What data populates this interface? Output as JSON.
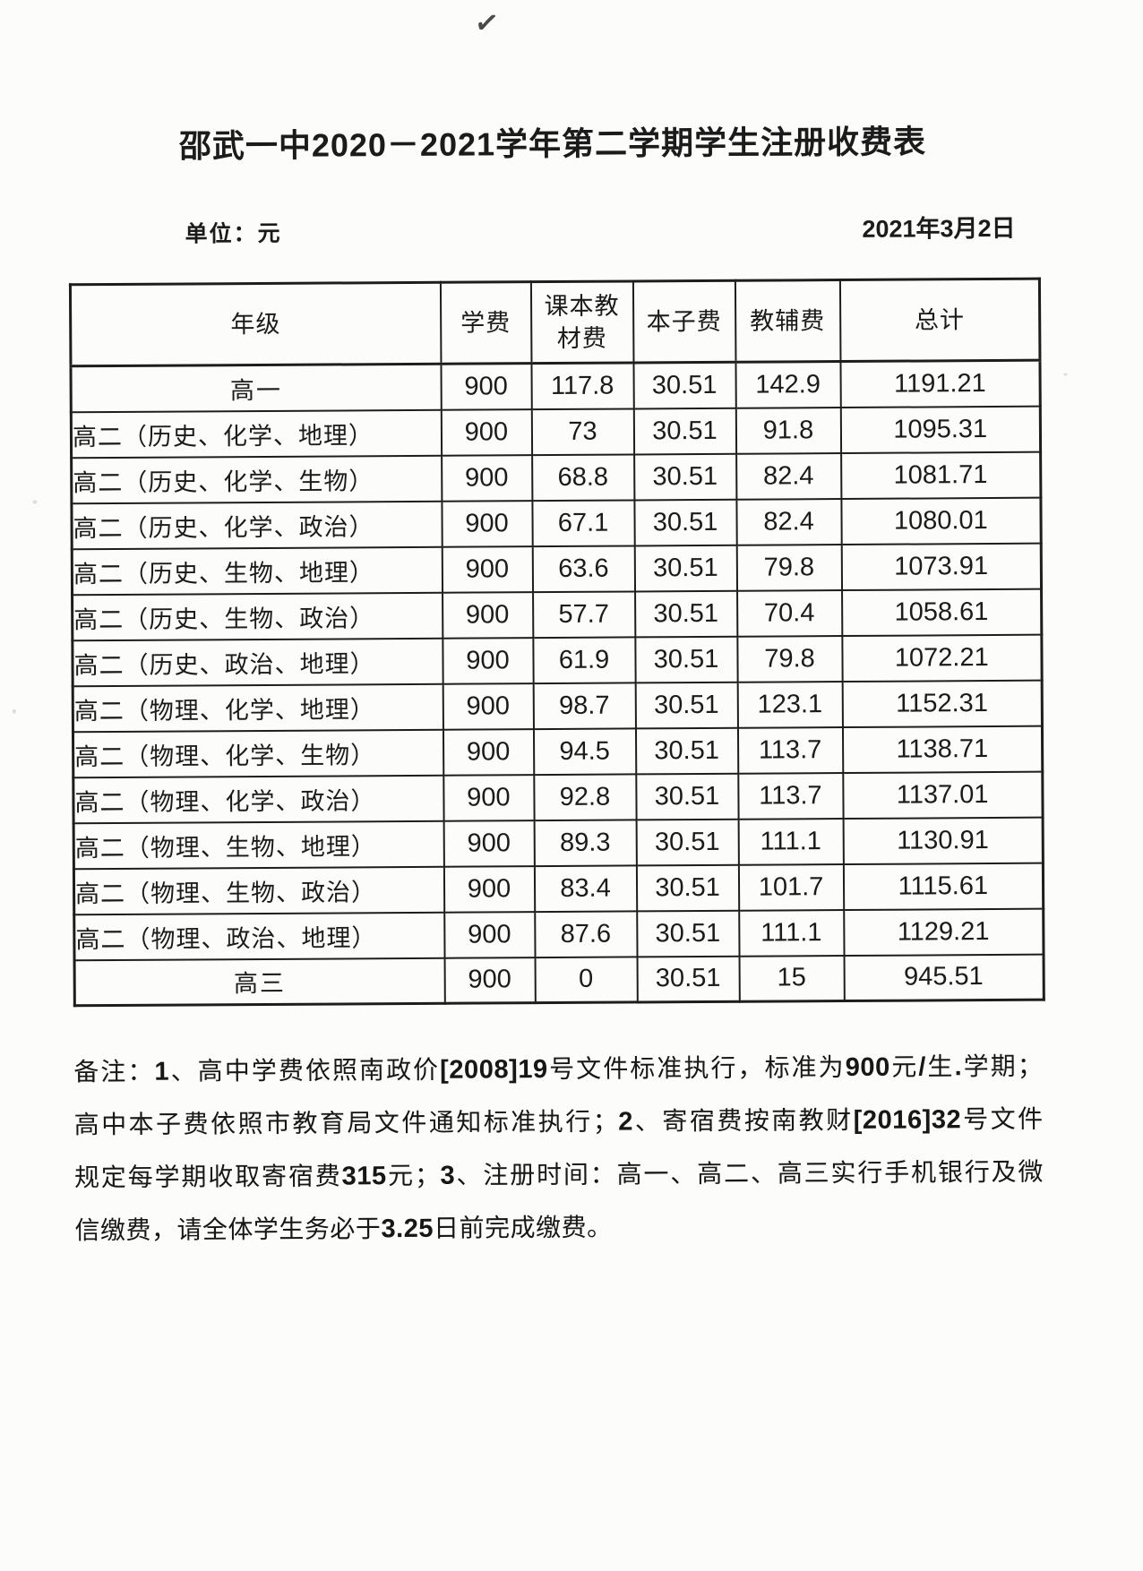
{
  "page": {
    "checkmark": "✓",
    "title": "邵武一中2020－2021学年第二学期学生注册收费表",
    "unit_label": "单位：元",
    "date": "2021年3月2日"
  },
  "fee_table": {
    "headers": [
      "年级",
      "学费",
      "课本教材费",
      "本子费",
      "教辅费",
      "总计"
    ],
    "rows": [
      {
        "grade": "高一",
        "tuition": "900",
        "textbook_fee": "117.8",
        "notebook_fee": "30.51",
        "supplementary_fee": "142.9",
        "total": "1191.21"
      },
      {
        "grade": "高二（历史、化学、地理）",
        "tuition": "900",
        "textbook_fee": "73",
        "notebook_fee": "30.51",
        "supplementary_fee": "91.8",
        "total": "1095.31"
      },
      {
        "grade": "高二（历史、化学、生物）",
        "tuition": "900",
        "textbook_fee": "68.8",
        "notebook_fee": "30.51",
        "supplementary_fee": "82.4",
        "total": "1081.71"
      },
      {
        "grade": "高二（历史、化学、政治）",
        "tuition": "900",
        "textbook_fee": "67.1",
        "notebook_fee": "30.51",
        "supplementary_fee": "82.4",
        "total": "1080.01"
      },
      {
        "grade": "高二（历史、生物、地理）",
        "tuition": "900",
        "textbook_fee": "63.6",
        "notebook_fee": "30.51",
        "supplementary_fee": "79.8",
        "total": "1073.91"
      },
      {
        "grade": "高二（历史、生物、政治）",
        "tuition": "900",
        "textbook_fee": "57.7",
        "notebook_fee": "30.51",
        "supplementary_fee": "70.4",
        "total": "1058.61"
      },
      {
        "grade": "高二（历史、政治、地理）",
        "tuition": "900",
        "textbook_fee": "61.9",
        "notebook_fee": "30.51",
        "supplementary_fee": "79.8",
        "total": "1072.21"
      },
      {
        "grade": "高二（物理、化学、地理）",
        "tuition": "900",
        "textbook_fee": "98.7",
        "notebook_fee": "30.51",
        "supplementary_fee": "123.1",
        "total": "1152.31"
      },
      {
        "grade": "高二（物理、化学、生物）",
        "tuition": "900",
        "textbook_fee": "94.5",
        "notebook_fee": "30.51",
        "supplementary_fee": "113.7",
        "total": "1138.71"
      },
      {
        "grade": "高二（物理、化学、政治）",
        "tuition": "900",
        "textbook_fee": "92.8",
        "notebook_fee": "30.51",
        "supplementary_fee": "113.7",
        "total": "1137.01"
      },
      {
        "grade": "高二（物理、生物、地理）",
        "tuition": "900",
        "textbook_fee": "89.3",
        "notebook_fee": "30.51",
        "supplementary_fee": "111.1",
        "total": "1130.91"
      },
      {
        "grade": "高二（物理、生物、政治）",
        "tuition": "900",
        "textbook_fee": "83.4",
        "notebook_fee": "30.51",
        "supplementary_fee": "101.7",
        "total": "1115.61"
      },
      {
        "grade": "高二（物理、政治、地理）",
        "tuition": "900",
        "textbook_fee": "87.6",
        "notebook_fee": "30.51",
        "supplementary_fee": "111.1",
        "total": "1129.21"
      },
      {
        "grade": "高三",
        "tuition": "900",
        "textbook_fee": "0",
        "notebook_fee": "30.51",
        "supplementary_fee": "15",
        "total": "945.51"
      }
    ]
  },
  "notes": {
    "lines": [
      "备注：1、高中学费依照南政价[2008]19号文件标准执行，标准为900元/生.学期；",
      "高中本子费依照市教育局文件通知标准执行；2、寄宿费按南教财[2016]32号文件",
      "规定每学期收取寄宿费315元；3、注册时间：高一、高二、高三实行手机银行及微",
      "信缴费，请全体学生务必于3.25日前完成缴费。"
    ]
  },
  "colors": {
    "ink": "#1b1b1b",
    "paper": "#fcfcfa",
    "table_border": "#1d1d1d"
  }
}
